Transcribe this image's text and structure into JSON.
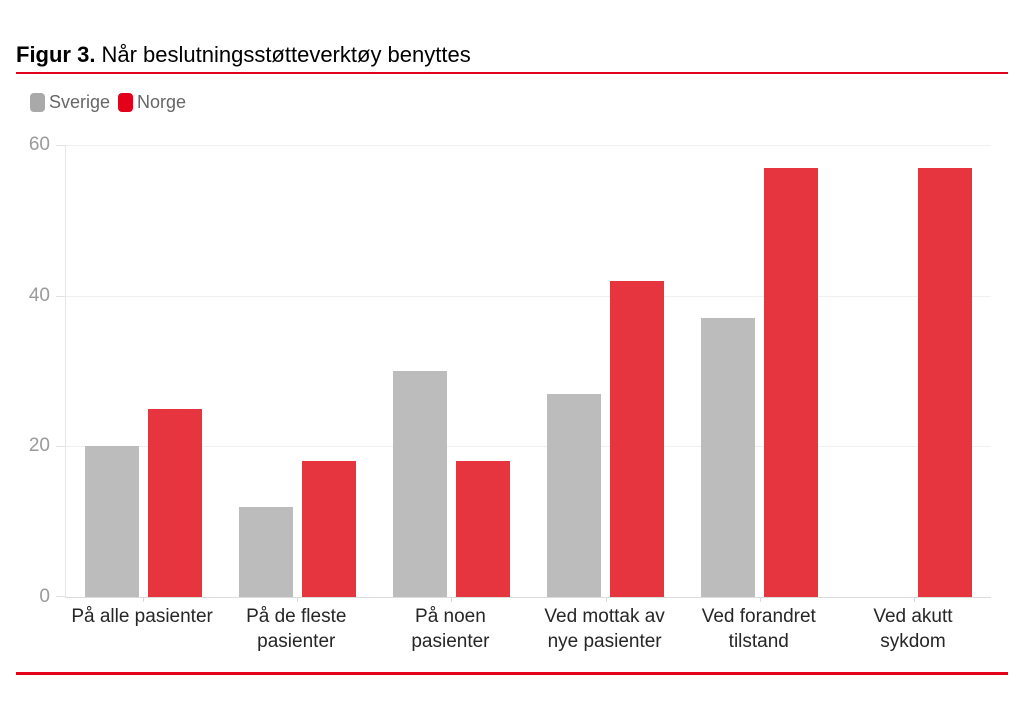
{
  "title": {
    "number": "Figur 3.",
    "text": "Når beslutningsstøtteverktøy benyttes"
  },
  "legend": {
    "items": [
      {
        "label": "Sverige",
        "swatch_color": "#a9a9a9"
      },
      {
        "label": "Norge",
        "swatch_color": "#e2001a"
      }
    ]
  },
  "colors": {
    "accent_rule": "#e2001a",
    "grid_line": "#f0f0f0",
    "axis_line": "#e0e0e0",
    "tick": "#d9d9d9",
    "y_label": "#9a9a9a",
    "x_label": "#262626",
    "legend_text": "#666666",
    "bar_gray": "#bcbcbc",
    "bar_red": "#e6353f"
  },
  "chart_data": {
    "type": "bar",
    "title": "Figur 3. Når beslutningsstøtteverktøy benyttes",
    "categories": [
      "På alle pasienter",
      "På de fleste pasienter",
      "På noen pasienter",
      "Ved mottak av nye pasienter",
      "Ved forandret tilstand",
      "Ved akutt sykdom"
    ],
    "category_lines": [
      [
        "På alle pasienter"
      ],
      [
        "På de fleste",
        "pasienter"
      ],
      [
        "På noen",
        "pasienter"
      ],
      [
        "Ved mottak av",
        "nye pasienter"
      ],
      [
        "Ved forandret",
        "tilstand"
      ],
      [
        "Ved akutt",
        "sykdom"
      ]
    ],
    "series": [
      {
        "name": "Sverige",
        "color": "#bcbcbc",
        "values": [
          20,
          12,
          30,
          27,
          37,
          0
        ]
      },
      {
        "name": "Norge",
        "color": "#e6353f",
        "values": [
          25,
          18,
          18,
          42,
          57,
          57
        ]
      }
    ],
    "xlabel": "",
    "ylabel": "",
    "ylim": [
      0,
      60
    ],
    "yticks": [
      0,
      20,
      40,
      60
    ],
    "grid": true,
    "legend_position": "top-left"
  }
}
